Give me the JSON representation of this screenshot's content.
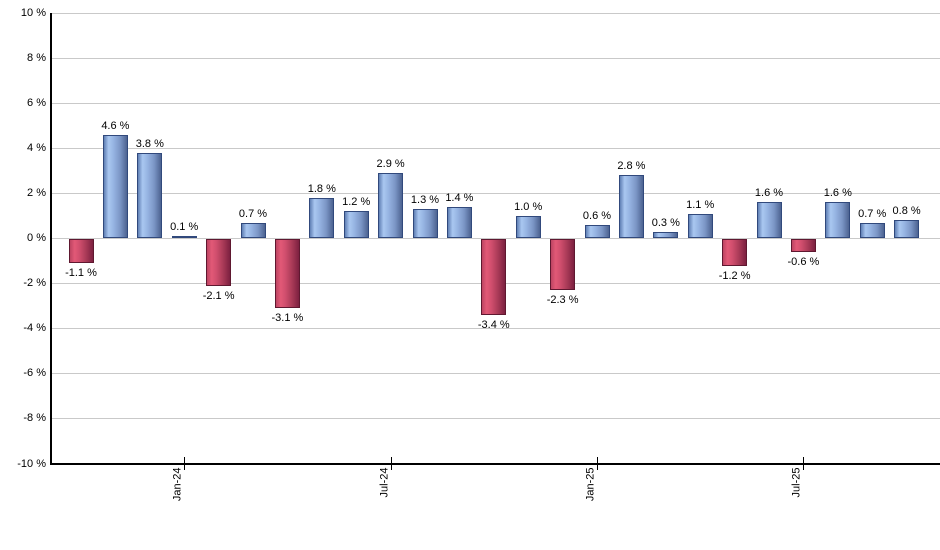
{
  "page": {
    "background": "#ffffff"
  },
  "chart_data": {
    "type": "bar",
    "title": "",
    "unit": "%",
    "values": [
      -1.1,
      4.6,
      3.8,
      0.1,
      -2.1,
      0.7,
      -3.1,
      1.8,
      1.2,
      2.9,
      1.3,
      1.4,
      -3.4,
      1.0,
      -2.3,
      0.6,
      2.8,
      0.3,
      1.1,
      -1.2,
      1.6,
      -0.6,
      1.6,
      0.7,
      0.8
    ],
    "bar_labels": [
      "-1.1 %",
      "4.6 %",
      "3.8 %",
      "0.1 %",
      "-2.1 %",
      "0.7 %",
      "-3.1 %",
      "1.8 %",
      "1.2 %",
      "2.9 %",
      "1.3 %",
      "1.4 %",
      "-3.4 %",
      "1.0 %",
      "-2.3 %",
      "0.6 %",
      "2.8 %",
      "0.3 %",
      "1.1 %",
      "-1.2 %",
      "1.6 %",
      "-0.6 %",
      "1.6 %",
      "0.7 %",
      "0.8 %"
    ],
    "x_ticks": [
      {
        "bar_index": 3,
        "label": "Jan-24"
      },
      {
        "bar_index": 9,
        "label": "Jul-24"
      },
      {
        "bar_index": 15,
        "label": "Jan-25"
      },
      {
        "bar_index": 21,
        "label": "Jul-25"
      }
    ],
    "y_ticks": [
      {
        "value": 10,
        "label": "10 %"
      },
      {
        "value": 8,
        "label": "8 %"
      },
      {
        "value": 6,
        "label": "6 %"
      },
      {
        "value": 4,
        "label": "4 %"
      },
      {
        "value": 2,
        "label": "2 %"
      },
      {
        "value": 0,
        "label": "0 %"
      },
      {
        "value": -2,
        "label": "-2 %"
      },
      {
        "value": -4,
        "label": "-4 %"
      },
      {
        "value": -6,
        "label": "-6 %"
      },
      {
        "value": -8,
        "label": "-8 %"
      },
      {
        "value": -10,
        "label": "-10 %"
      }
    ],
    "ylim": [
      -10,
      10
    ],
    "grid": "horizontal",
    "legend": "none",
    "colors": {
      "positive_gradient": [
        "#6080b5",
        "#a9c7f0",
        "#97b5e3",
        "#7b96c6",
        "#4d6391"
      ],
      "negative_gradient": [
        "#bd4462",
        "#e25977",
        "#d14f6e",
        "#a93a57",
        "#7c2040"
      ],
      "gradient_stops_pct": [
        0,
        20,
        40,
        70,
        100
      ],
      "positive_border": "#31497c",
      "negative_border": "#5f1830",
      "gridline": "#c9c9c9",
      "axis": "#000000",
      "label_text": "#000000"
    }
  }
}
